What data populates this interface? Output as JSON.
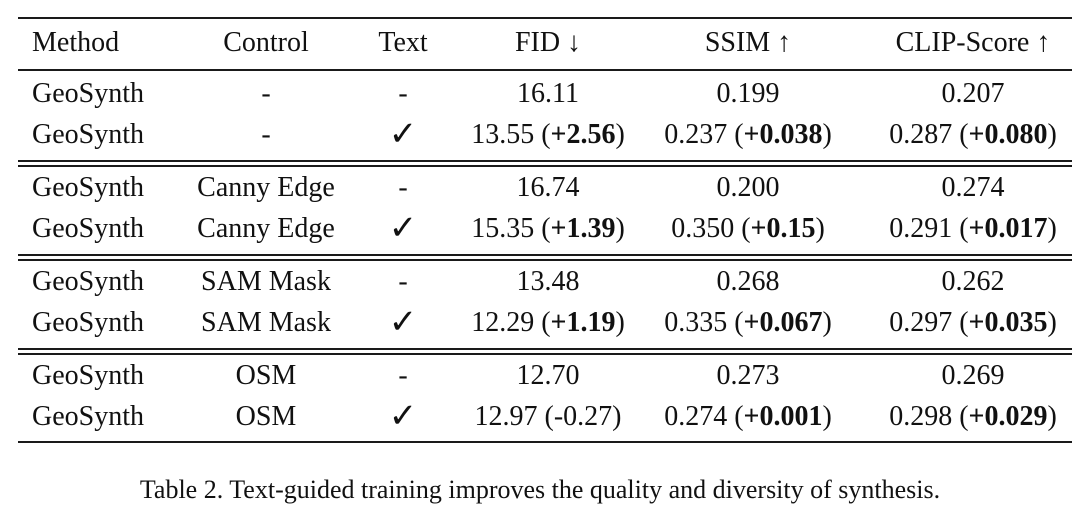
{
  "table": {
    "headers": {
      "method": "Method",
      "control": "Control",
      "text": "Text",
      "fid": "FID ↓",
      "ssim": "SSIM ↑",
      "clip": "CLIP-Score ↑"
    },
    "groups": [
      {
        "rows": [
          {
            "method": "GeoSynth",
            "control": "-",
            "text": "-",
            "fid": "16.11",
            "fid_delta": "",
            "fid_close": "",
            "ssim": "0.199",
            "ssim_delta": "",
            "ssim_close": "",
            "clip": "0.207",
            "clip_delta": "",
            "clip_close": ""
          },
          {
            "method": "GeoSynth",
            "control": "-",
            "text": "✓",
            "fid": "13.55 (",
            "fid_delta": "+2.56",
            "fid_close": ")",
            "ssim": "0.237 (",
            "ssim_delta": "+0.038",
            "ssim_close": ")",
            "clip": "0.287 (",
            "clip_delta": "+0.080",
            "clip_close": ")"
          }
        ]
      },
      {
        "rows": [
          {
            "method": "GeoSynth",
            "control": "Canny Edge",
            "text": "-",
            "fid": "16.74",
            "fid_delta": "",
            "fid_close": "",
            "ssim": "0.200",
            "ssim_delta": "",
            "ssim_close": "",
            "clip": "0.274",
            "clip_delta": "",
            "clip_close": ""
          },
          {
            "method": "GeoSynth",
            "control": "Canny Edge",
            "text": "✓",
            "fid": "15.35 (",
            "fid_delta": "+1.39",
            "fid_close": ")",
            "ssim": "0.350 (",
            "ssim_delta": "+0.15",
            "ssim_close": ")",
            "clip": "0.291 (",
            "clip_delta": "+0.017",
            "clip_close": ")"
          }
        ]
      },
      {
        "rows": [
          {
            "method": "GeoSynth",
            "control": "SAM Mask",
            "text": "-",
            "fid": "13.48",
            "fid_delta": "",
            "fid_close": "",
            "ssim": "0.268",
            "ssim_delta": "",
            "ssim_close": "",
            "clip": "0.262",
            "clip_delta": "",
            "clip_close": ""
          },
          {
            "method": "GeoSynth",
            "control": "SAM Mask",
            "text": "✓",
            "fid": "12.29 (",
            "fid_delta": "+1.19",
            "fid_close": ")",
            "ssim": "0.335 (",
            "ssim_delta": "+0.067",
            "ssim_close": ")",
            "clip": "0.297 (",
            "clip_delta": "+0.035",
            "clip_close": ")"
          }
        ]
      },
      {
        "rows": [
          {
            "method": "GeoSynth",
            "control": "OSM",
            "text": "-",
            "fid": "12.70",
            "fid_delta": "",
            "fid_close": "",
            "ssim": "0.273",
            "ssim_delta": "",
            "ssim_close": "",
            "clip": "0.269",
            "clip_delta": "",
            "clip_close": ""
          },
          {
            "method": "GeoSynth",
            "control": "OSM",
            "text": "✓",
            "fid": "12.97 (-0.27)",
            "fid_delta": "",
            "fid_close": "",
            "ssim": "0.274 (",
            "ssim_delta": "+0.001",
            "ssim_close": ")",
            "clip": "0.298 (",
            "clip_delta": "+0.029",
            "clip_close": ")"
          }
        ]
      }
    ]
  },
  "caption": "Table 2. Text-guided training improves the quality and diversity of synthesis."
}
